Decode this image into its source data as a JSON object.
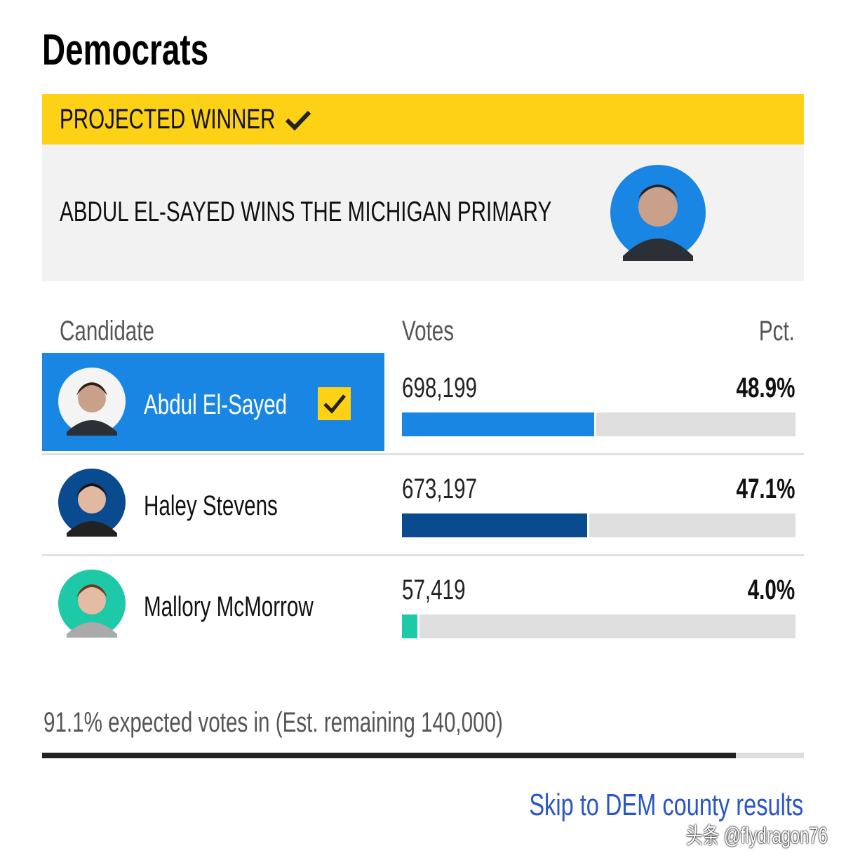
{
  "title": "Democrats",
  "banner": {
    "label": "PROJECTED WINNER",
    "headline": "ABDUL EL-SAYED WINS THE MICHIGAN PRIMARY"
  },
  "table": {
    "headers": [
      "Candidate",
      "Votes",
      "Pct."
    ],
    "rows": [
      {
        "name": "Abdul El-Sayed",
        "votes": "698,199",
        "pct": 48.9,
        "pct_label": "48.9%",
        "color": "#1a86e3"
      },
      {
        "name": "Haley Stevens",
        "votes": "673,197",
        "pct": 47.1,
        "pct_label": "47.1%",
        "color": "#0a4a8f"
      },
      {
        "name": "Mallory McMorrow",
        "votes": "57,419",
        "pct": 4.0,
        "pct_label": "4.0%",
        "color": "#1ec9a8"
      }
    ]
  },
  "footer": {
    "expected_text": "91.1% expected votes in (Est. remaining 140,000)",
    "expected_pct": 91.1,
    "link": "Skip to DEM county results"
  },
  "watermark": "头条 @flydragon76"
}
